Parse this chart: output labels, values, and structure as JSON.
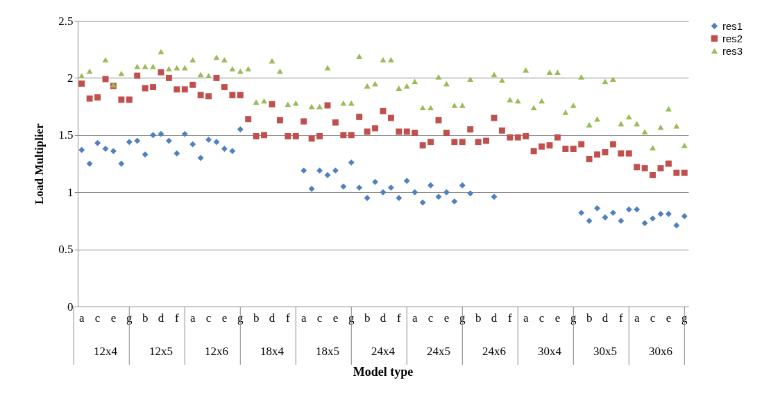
{
  "chart_data": {
    "type": "scatter",
    "xlabel": "Model type",
    "ylabel": "Load Multiplier",
    "categories": [
      "a",
      null,
      "c",
      null,
      "e",
      null,
      "g",
      null,
      "b",
      null,
      "d",
      null,
      "f",
      null,
      "a",
      null,
      "c",
      null,
      "e",
      null,
      "g",
      null,
      "b",
      null,
      "d",
      null,
      "f",
      null,
      "a",
      null,
      "c",
      null,
      "e",
      null,
      "g",
      null,
      "b",
      null,
      "d",
      null,
      "f",
      null,
      "a",
      null,
      "c",
      null,
      "e",
      null,
      "g",
      null,
      "b",
      null,
      "d",
      null,
      "f",
      null,
      "a",
      null,
      "c",
      null,
      "e",
      null,
      "g",
      null,
      "b",
      null,
      "d",
      null,
      "f",
      null,
      "a",
      null,
      "c",
      null,
      "e",
      null,
      "g"
    ],
    "annotations": [
      "12x4",
      "12x5",
      "12x6",
      "18x4",
      "18x5",
      "24x4",
      "24x5",
      "24x6",
      "30x4",
      "30x5",
      "30x6"
    ],
    "series": [
      {
        "name": "res1",
        "color": "#4f81bd",
        "marker": "diamond",
        "values": [
          1.37,
          1.25,
          1.43,
          1.38,
          1.36,
          1.25,
          1.44,
          1.45,
          1.33,
          1.5,
          1.51,
          1.45,
          1.34,
          1.51,
          1.42,
          1.3,
          1.46,
          1.44,
          1.38,
          1.36,
          1.55,
          null,
          null,
          null,
          null,
          null,
          null,
          null,
          1.19,
          1.03,
          1.19,
          1.15,
          1.19,
          1.05,
          1.26,
          1.04,
          0.95,
          1.09,
          1.0,
          1.04,
          0.95,
          1.1,
          1.0,
          0.91,
          1.06,
          0.96,
          1.0,
          0.92,
          1.06,
          0.99,
          null,
          null,
          0.96,
          null,
          null,
          null,
          null,
          null,
          null,
          null,
          null,
          null,
          null,
          0.82,
          0.75,
          0.86,
          0.78,
          0.82,
          0.75,
          0.85,
          0.85,
          0.73,
          0.77,
          0.81,
          0.81,
          0.71,
          0.79
        ]
      },
      {
        "name": "res2",
        "color": "#c0504d",
        "marker": "square",
        "values": [
          1.95,
          1.82,
          1.83,
          1.99,
          1.93,
          1.81,
          1.81,
          2.02,
          1.91,
          1.92,
          2.05,
          2.0,
          1.9,
          1.9,
          1.94,
          1.85,
          1.84,
          2.0,
          1.92,
          1.85,
          1.85,
          1.64,
          1.49,
          1.5,
          1.77,
          1.63,
          1.49,
          1.49,
          1.62,
          1.47,
          1.49,
          1.76,
          1.61,
          1.5,
          1.5,
          1.66,
          1.53,
          1.56,
          1.71,
          1.65,
          1.53,
          1.53,
          1.52,
          1.41,
          1.44,
          1.63,
          1.52,
          1.44,
          1.44,
          1.55,
          1.44,
          1.45,
          1.65,
          1.54,
          1.48,
          1.48,
          1.49,
          1.36,
          1.4,
          1.41,
          1.48,
          1.38,
          1.38,
          1.42,
          1.29,
          1.33,
          1.35,
          1.42,
          1.34,
          1.34,
          1.22,
          1.21,
          1.15,
          1.21,
          1.25,
          1.17,
          1.17
        ]
      },
      {
        "name": "res3",
        "color": "#9bbb59",
        "marker": "triangle",
        "values": [
          2.02,
          2.06,
          null,
          2.16,
          1.94,
          2.04,
          null,
          2.1,
          2.1,
          2.1,
          2.23,
          2.08,
          2.09,
          2.09,
          2.16,
          2.03,
          2.02,
          2.18,
          2.16,
          2.08,
          2.06,
          2.08,
          1.79,
          1.8,
          2.15,
          2.06,
          1.77,
          1.78,
          null,
          1.75,
          1.75,
          2.09,
          null,
          1.78,
          1.78,
          2.19,
          1.93,
          1.95,
          2.16,
          2.16,
          1.91,
          1.93,
          1.97,
          1.74,
          1.74,
          2.01,
          1.95,
          1.76,
          1.76,
          1.99,
          null,
          null,
          2.03,
          1.98,
          1.81,
          1.8,
          2.07,
          1.74,
          1.8,
          2.05,
          2.05,
          1.7,
          1.76,
          2.01,
          1.59,
          1.64,
          1.97,
          1.99,
          1.6,
          1.66,
          1.6,
          1.53,
          1.39,
          1.57,
          1.73,
          1.58,
          1.41
        ]
      }
    ],
    "ylim": [
      0,
      2.5
    ],
    "yticks": [
      0,
      0.5,
      1,
      1.5,
      2,
      2.5
    ],
    "grid": "y",
    "legend": "right"
  }
}
